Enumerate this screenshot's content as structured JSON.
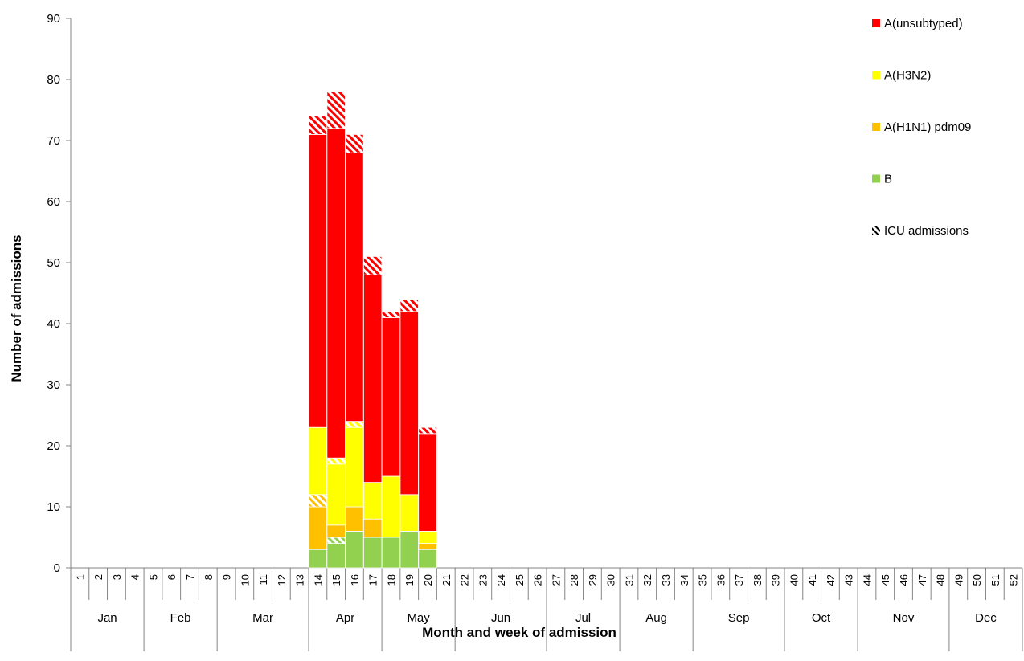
{
  "chart_data": {
    "type": "bar",
    "stacked": true,
    "xlabel": "Month and week of admission",
    "ylabel": "Number of admissions",
    "ylim": [
      0,
      90
    ],
    "yticks": [
      0,
      10,
      20,
      30,
      40,
      50,
      60,
      70,
      80,
      90
    ],
    "weeks": [
      "1",
      "2",
      "3",
      "4",
      "5",
      "6",
      "7",
      "8",
      "9",
      "10",
      "11",
      "12",
      "13",
      "14",
      "15",
      "16",
      "17",
      "18",
      "19",
      "20",
      "21",
      "22",
      "23",
      "24",
      "25",
      "26",
      "27",
      "28",
      "29",
      "30",
      "31",
      "32",
      "33",
      "34",
      "35",
      "36",
      "37",
      "38",
      "39",
      "40",
      "41",
      "42",
      "43",
      "44",
      "45",
      "46",
      "47",
      "48",
      "49",
      "50",
      "51",
      "52"
    ],
    "months": [
      {
        "label": "Jan",
        "weeks": [
          1,
          4
        ]
      },
      {
        "label": "Feb",
        "weeks": [
          5,
          8
        ]
      },
      {
        "label": "Mar",
        "weeks": [
          9,
          13
        ]
      },
      {
        "label": "Apr",
        "weeks": [
          14,
          17
        ]
      },
      {
        "label": "May",
        "weeks": [
          18,
          21
        ]
      },
      {
        "label": "Jun",
        "weeks": [
          22,
          26
        ]
      },
      {
        "label": "Jul",
        "weeks": [
          27,
          30
        ]
      },
      {
        "label": "Aug",
        "weeks": [
          31,
          34
        ]
      },
      {
        "label": "Sep",
        "weeks": [
          35,
          39
        ]
      },
      {
        "label": "Oct",
        "weeks": [
          40,
          43
        ]
      },
      {
        "label": "Nov",
        "weeks": [
          44,
          48
        ]
      },
      {
        "label": "Dec",
        "weeks": [
          49,
          52
        ]
      }
    ],
    "series": [
      {
        "name": "B",
        "color": "#92d050",
        "values": {
          "14": 3,
          "15": 4,
          "16": 6,
          "17": 5,
          "18": 5,
          "19": 6,
          "20": 3
        },
        "icu": {
          "15": 1
        }
      },
      {
        "name": "A(H1N1) pdm09",
        "color": "#ffc000",
        "values": {
          "14": 7,
          "15": 2,
          "16": 4,
          "17": 3,
          "20": 1
        },
        "icu": {
          "14": 2
        }
      },
      {
        "name": "A(H3N2)",
        "color": "#ffff00",
        "values": {
          "14": 11,
          "15": 10,
          "16": 13,
          "17": 6,
          "18": 10,
          "19": 6,
          "20": 2
        },
        "icu": {
          "15": 1,
          "16": 1
        }
      },
      {
        "name": "A(unsubtyped)",
        "color": "#ff0000",
        "values": {
          "14": 48,
          "15": 54,
          "16": 44,
          "17": 34,
          "18": 26,
          "19": 30,
          "20": 16
        },
        "icu": {
          "14": 3,
          "15": 6,
          "16": 3,
          "17": 3,
          "18": 1,
          "19": 2,
          "20": 1
        }
      }
    ],
    "legend": {
      "position": "top-right",
      "items": [
        {
          "label": "A(unsubtyped)",
          "color": "#ff0000"
        },
        {
          "label": "A(H3N2)",
          "color": "#ffff00"
        },
        {
          "label": "A(H1N1) pdm09",
          "color": "#ffc000"
        },
        {
          "label": "B",
          "color": "#92d050"
        },
        {
          "label": "ICU admissions",
          "pattern": "hatch"
        }
      ]
    },
    "grid": false
  }
}
